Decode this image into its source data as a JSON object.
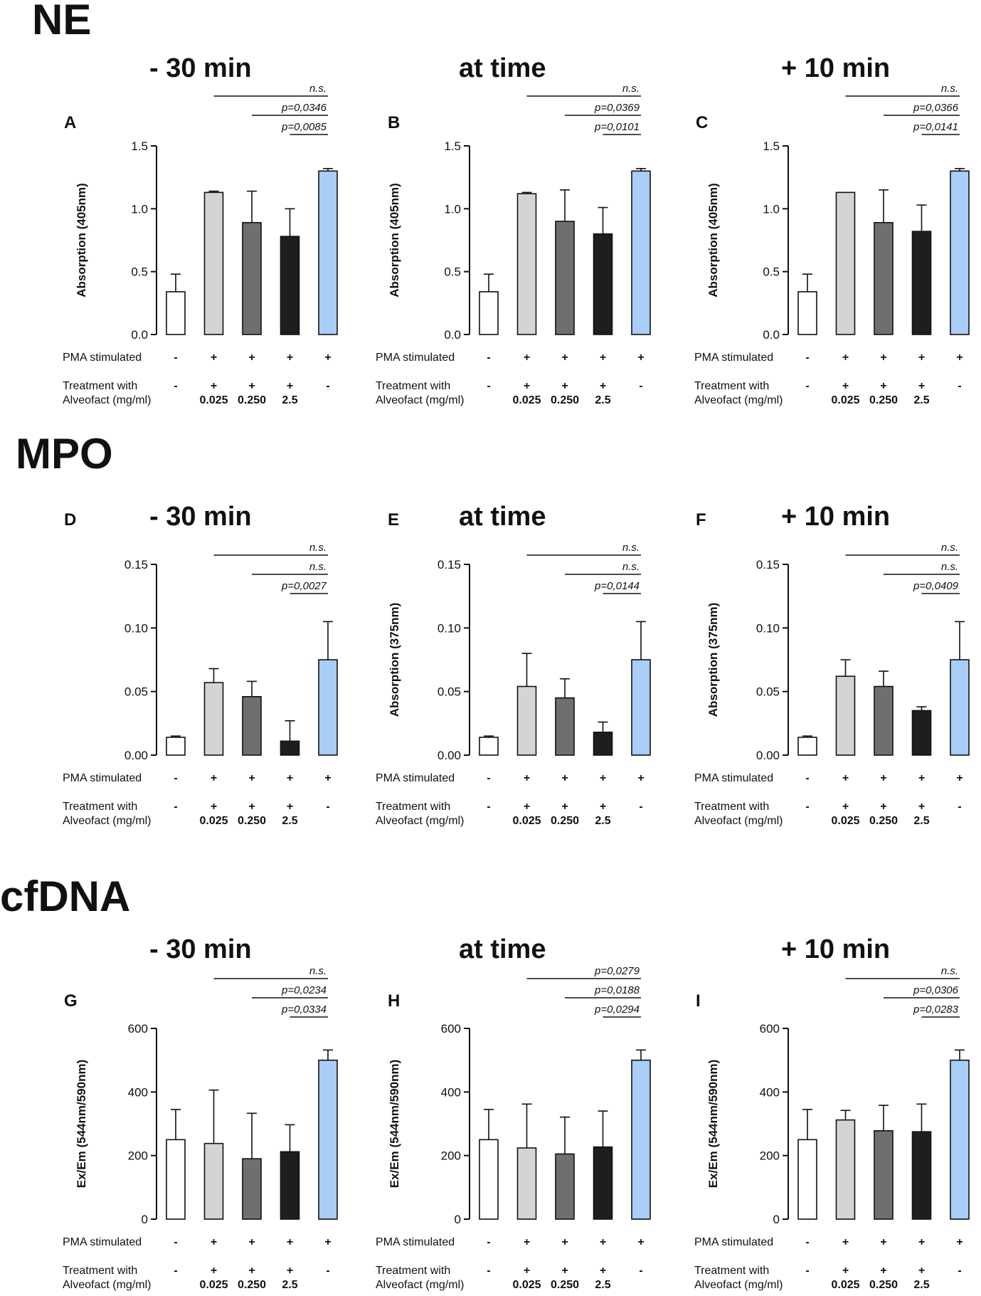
{
  "sections": [
    {
      "name": "NE",
      "label": "NE"
    },
    {
      "name": "MPO",
      "label": "MPO"
    },
    {
      "name": "cfDNA",
      "label": "cfDNA"
    }
  ],
  "legend": {
    "pma_label": "PMA stimulated",
    "treat_label_1": "Treatment with",
    "treat_label_2": "Alveofact (mg/ml)",
    "pma": [
      "-",
      "+",
      "+",
      "+",
      "+"
    ],
    "treat": [
      "-",
      "+",
      "+",
      "+",
      "-"
    ],
    "conc": [
      "",
      "0.025",
      "0.250",
      "2.5",
      ""
    ]
  },
  "colors": {
    "bars": [
      "#ffffff",
      "#d4d4d4",
      "#6f6f6f",
      "#1e1e1e",
      "#a9cdf7"
    ],
    "axis": "#111111"
  },
  "chart_data": [
    {
      "panel": "A",
      "type": "bar",
      "time_title": "- 30 min",
      "ylabel": "Absorption (405nm)",
      "ylim": [
        0,
        1.5
      ],
      "yticks": [
        "0.0",
        "0.5",
        "1.0",
        "1.5"
      ],
      "values": [
        0.34,
        1.13,
        0.89,
        0.78,
        1.3
      ],
      "errors": [
        0.14,
        0.01,
        0.25,
        0.22,
        0.02
      ],
      "sig": [
        {
          "from": 1,
          "text": "n.s."
        },
        {
          "from": 2,
          "text": "p=0,0346"
        },
        {
          "from": 3,
          "text": "p=0,0085"
        }
      ]
    },
    {
      "panel": "B",
      "type": "bar",
      "time_title": "at time",
      "ylabel": "Absorption (405nm)",
      "ylim": [
        0,
        1.5
      ],
      "yticks": [
        "0.0",
        "0.5",
        "1.0",
        "1.5"
      ],
      "values": [
        0.34,
        1.12,
        0.9,
        0.8,
        1.3
      ],
      "errors": [
        0.14,
        0.01,
        0.25,
        0.21,
        0.02
      ],
      "sig": [
        {
          "from": 1,
          "text": "n.s."
        },
        {
          "from": 2,
          "text": "p=0,0369"
        },
        {
          "from": 3,
          "text": "p=0,0101"
        }
      ]
    },
    {
      "panel": "C",
      "type": "bar",
      "time_title": "+ 10 min",
      "ylabel": "Absorption (405nm)",
      "ylim": [
        0,
        1.5
      ],
      "yticks": [
        "0.0",
        "0.5",
        "1.0",
        "1.5"
      ],
      "values": [
        0.34,
        1.13,
        0.89,
        0.82,
        1.3
      ],
      "errors": [
        0.14,
        0.0,
        0.26,
        0.21,
        0.02
      ],
      "sig": [
        {
          "from": 1,
          "text": "n.s."
        },
        {
          "from": 2,
          "text": "p=0,0366"
        },
        {
          "from": 3,
          "text": "p=0,0141"
        }
      ]
    },
    {
      "panel": "D",
      "type": "bar",
      "time_title": "- 30 min",
      "ylabel": "",
      "ylim": [
        0,
        0.15
      ],
      "yticks": [
        "0.00",
        "0.05",
        "0.10",
        "0.15"
      ],
      "values": [
        0.014,
        0.057,
        0.046,
        0.011,
        0.075
      ],
      "errors": [
        0.001,
        0.011,
        0.012,
        0.016,
        0.03
      ],
      "sig": [
        {
          "from": 1,
          "text": "n.s."
        },
        {
          "from": 2,
          "text": "n.s."
        },
        {
          "from": 3,
          "text": "p=0,0027"
        }
      ]
    },
    {
      "panel": "E",
      "type": "bar",
      "time_title": "at time",
      "ylabel": "Absorption (375nm)",
      "ylim": [
        0,
        0.15
      ],
      "yticks": [
        "0.00",
        "0.05",
        "0.10",
        "0.15"
      ],
      "values": [
        0.014,
        0.054,
        0.045,
        0.018,
        0.075
      ],
      "errors": [
        0.001,
        0.026,
        0.015,
        0.008,
        0.03
      ],
      "sig": [
        {
          "from": 1,
          "text": "n.s."
        },
        {
          "from": 2,
          "text": "n.s."
        },
        {
          "from": 3,
          "text": "p=0,0144"
        }
      ]
    },
    {
      "panel": "F",
      "type": "bar",
      "time_title": "+ 10 min",
      "ylabel": "Absorption (375nm)",
      "ylim": [
        0,
        0.15
      ],
      "yticks": [
        "0.00",
        "0.05",
        "0.10",
        "0.15"
      ],
      "values": [
        0.014,
        0.062,
        0.054,
        0.035,
        0.075
      ],
      "errors": [
        0.001,
        0.013,
        0.012,
        0.003,
        0.03
      ],
      "sig": [
        {
          "from": 1,
          "text": "n.s."
        },
        {
          "from": 2,
          "text": "n.s."
        },
        {
          "from": 3,
          "text": "p=0,0409"
        }
      ]
    },
    {
      "panel": "G",
      "type": "bar",
      "time_title": "- 30 min",
      "ylabel": "Ex/Em (544nm/590nm)",
      "ylim": [
        0,
        600
      ],
      "yticks": [
        "0",
        "200",
        "400",
        "600"
      ],
      "values": [
        250,
        238,
        190,
        212,
        500
      ],
      "errors": [
        95,
        168,
        143,
        85,
        32
      ],
      "sig": [
        {
          "from": 1,
          "text": "n.s."
        },
        {
          "from": 2,
          "text": "p=0,0234"
        },
        {
          "from": 3,
          "text": "p=0,0334"
        }
      ]
    },
    {
      "panel": "H",
      "type": "bar",
      "time_title": "at time",
      "ylabel": "Ex/Em (544nm/590nm)",
      "ylim": [
        0,
        600
      ],
      "yticks": [
        "0",
        "200",
        "400",
        "600"
      ],
      "values": [
        250,
        224,
        205,
        227,
        500
      ],
      "errors": [
        95,
        138,
        116,
        113,
        32
      ],
      "sig": [
        {
          "from": 1,
          "text": "p=0,0279"
        },
        {
          "from": 2,
          "text": "p=0,0188"
        },
        {
          "from": 3,
          "text": "p=0,0294"
        }
      ]
    },
    {
      "panel": "I",
      "type": "bar",
      "time_title": "+ 10 min",
      "ylabel": "Ex/Em (544nm/590nm)",
      "ylim": [
        0,
        600
      ],
      "yticks": [
        "0",
        "200",
        "400",
        "600"
      ],
      "values": [
        250,
        312,
        278,
        275,
        500
      ],
      "errors": [
        95,
        30,
        80,
        87,
        32
      ],
      "sig": [
        {
          "from": 1,
          "text": "n.s."
        },
        {
          "from": 2,
          "text": "p=0,0306"
        },
        {
          "from": 3,
          "text": "p=0,0283"
        }
      ]
    }
  ]
}
